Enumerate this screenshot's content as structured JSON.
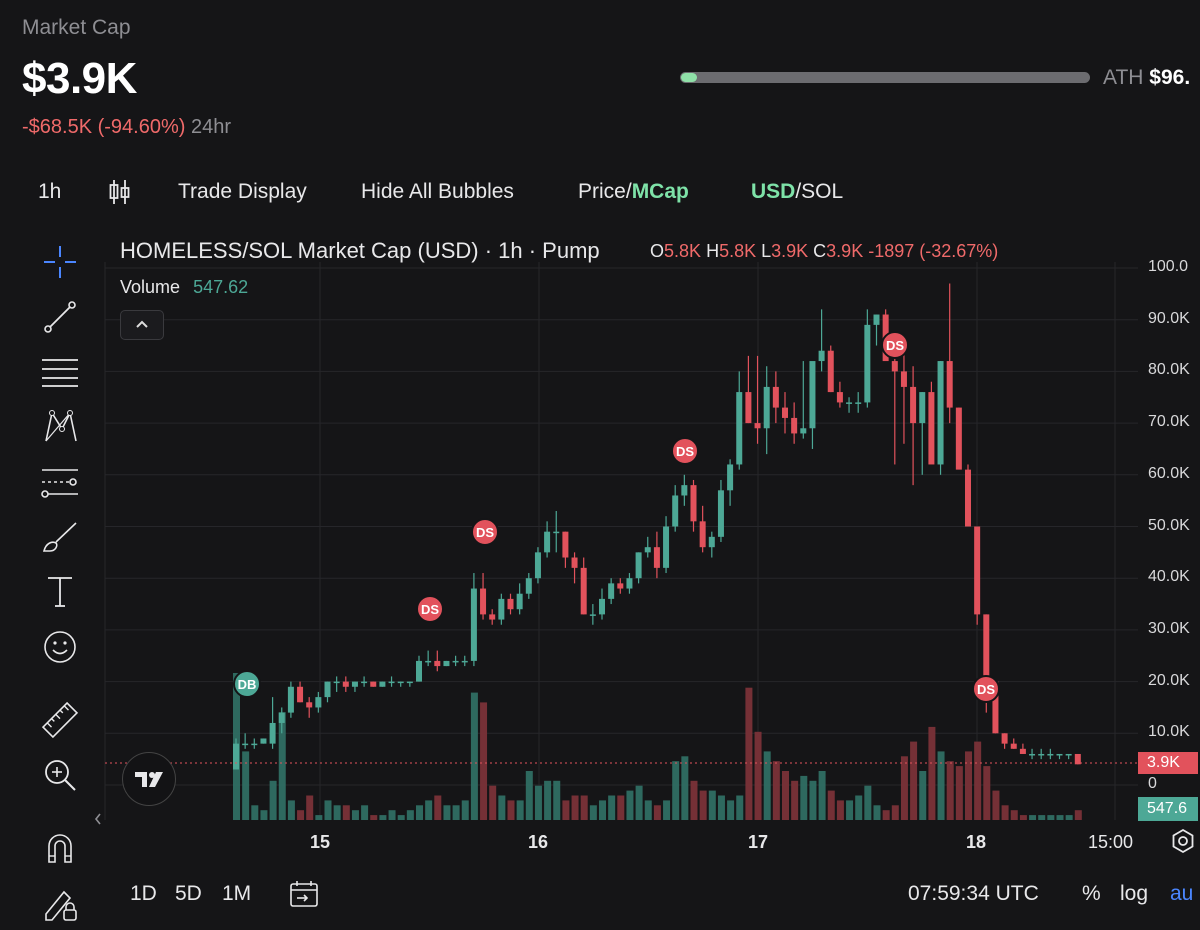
{
  "header": {
    "market_cap_label": "Market Cap",
    "market_cap_value": "$3.9K",
    "change_value": "-$68.5K (-94.60%)",
    "change_period": "24hr",
    "ath_label": "ATH",
    "ath_value": "$96.",
    "ath_progress_fraction": 0.04
  },
  "toolbar": {
    "interval": "1h",
    "trade_display": "Trade Display",
    "hide_bubbles": "Hide All Bubbles",
    "price_label": "Price/",
    "mcap_label": "MCap",
    "usd_label": "USD",
    "sol_label": "/SOL"
  },
  "legend": {
    "title": "HOMELESS/SOL Market Cap (USD) · 1h · Pump",
    "o_label": "O",
    "o_value": "5.8K",
    "h_label": "H",
    "h_value": "5.8K",
    "l_label": "L",
    "l_value": "3.9K",
    "c_label": "C",
    "c_value": "3.9K",
    "change": "-1897 (-32.67%)",
    "volume_label": "Volume",
    "volume_value": "547.62",
    "collapse_icon": "chevron-up-icon"
  },
  "axis": {
    "y_ticks": [
      "100.0",
      "90.0K",
      "80.0K",
      "70.0K",
      "60.0K",
      "50.0K",
      "40.0K",
      "30.0K",
      "20.0K",
      "10.0K",
      "0"
    ],
    "x_ticks": [
      "15",
      "16",
      "17",
      "18",
      "15:00"
    ],
    "price_tag": "3.9K",
    "volume_tag": "547.6"
  },
  "bubbles": [
    "DB",
    "DS",
    "DS",
    "DS",
    "DS",
    "DS"
  ],
  "bottom": {
    "range_1d": "1D",
    "range_5d": "5D",
    "range_1m": "1M",
    "time": "07:59:34 UTC",
    "percent": "%",
    "log": "log",
    "auto": "au"
  },
  "colors": {
    "up": "#4da896",
    "down": "#e2525c",
    "accent_green": "#7ee2a8",
    "background": "#151517"
  },
  "chart_data": {
    "type": "candlestick",
    "series": [
      {
        "name": "Market Cap",
        "ohlc_in_k": [
          [
            3,
            9,
            5,
            8
          ],
          [
            8,
            10,
            7,
            8
          ],
          [
            8,
            9,
            7,
            8
          ],
          [
            8,
            9,
            8,
            9
          ],
          [
            8,
            17,
            7,
            12
          ],
          [
            12,
            15,
            10,
            14
          ],
          [
            14,
            20,
            13,
            19
          ],
          [
            19,
            20,
            16,
            16
          ],
          [
            16,
            17,
            13,
            15
          ],
          [
            15,
            18,
            14,
            17
          ],
          [
            17,
            20,
            16,
            20
          ],
          [
            20,
            21,
            18,
            20
          ],
          [
            20,
            21,
            18,
            19
          ],
          [
            19,
            20,
            18,
            20
          ],
          [
            20,
            21,
            19,
            20
          ],
          [
            20,
            20,
            19,
            19
          ],
          [
            19,
            20,
            19,
            20
          ],
          [
            20,
            21,
            19,
            20
          ],
          [
            20,
            20,
            19,
            20
          ],
          [
            20,
            20,
            19,
            20
          ],
          [
            20,
            25,
            20,
            24
          ],
          [
            24,
            26,
            23,
            24
          ],
          [
            24,
            26,
            22,
            23
          ],
          [
            23,
            24,
            23,
            24
          ],
          [
            24,
            25,
            23,
            24
          ],
          [
            24,
            25,
            23,
            24
          ],
          [
            24,
            41,
            23,
            38
          ],
          [
            38,
            41,
            32,
            33
          ],
          [
            33,
            34,
            31,
            32
          ],
          [
            32,
            37,
            31,
            36
          ],
          [
            36,
            37,
            33,
            34
          ],
          [
            34,
            39,
            33,
            37
          ],
          [
            37,
            41,
            36,
            40
          ],
          [
            40,
            46,
            39,
            45
          ],
          [
            45,
            51,
            44,
            49
          ],
          [
            49,
            53,
            45,
            49
          ],
          [
            49,
            49,
            42,
            44
          ],
          [
            44,
            45,
            39,
            42
          ],
          [
            42,
            44,
            33,
            33
          ],
          [
            33,
            35,
            31,
            33
          ],
          [
            33,
            38,
            32,
            36
          ],
          [
            36,
            40,
            35,
            39
          ],
          [
            39,
            40,
            37,
            38
          ],
          [
            38,
            41,
            37,
            40
          ],
          [
            40,
            45,
            39,
            45
          ],
          [
            45,
            48,
            44,
            46
          ],
          [
            46,
            49,
            40,
            42
          ],
          [
            42,
            52,
            41,
            50
          ],
          [
            50,
            58,
            49,
            56
          ],
          [
            56,
            60,
            54,
            58
          ],
          [
            58,
            59,
            49,
            51
          ],
          [
            51,
            54,
            45,
            46
          ],
          [
            46,
            49,
            44,
            48
          ],
          [
            48,
            59,
            47,
            57
          ],
          [
            57,
            63,
            54,
            62
          ],
          [
            62,
            80,
            61,
            76
          ],
          [
            76,
            83,
            70,
            70
          ],
          [
            70,
            83,
            66,
            69
          ],
          [
            69,
            81,
            64,
            77
          ],
          [
            77,
            80,
            70,
            73
          ],
          [
            73,
            76,
            68,
            71
          ],
          [
            71,
            74,
            66,
            68
          ],
          [
            68,
            82,
            67,
            69
          ],
          [
            69,
            79,
            65,
            82
          ],
          [
            82,
            92,
            80,
            84
          ],
          [
            84,
            85,
            76,
            76
          ],
          [
            76,
            78,
            73,
            74
          ],
          [
            74,
            75,
            72,
            74
          ],
          [
            74,
            76,
            72,
            74
          ],
          [
            74,
            92,
            73,
            89
          ],
          [
            89,
            91,
            85,
            91
          ],
          [
            91,
            92,
            84,
            82
          ],
          [
            82,
            86,
            62,
            80
          ],
          [
            80,
            84,
            66,
            77
          ],
          [
            77,
            81,
            58,
            70
          ],
          [
            70,
            76,
            60,
            76
          ],
          [
            76,
            78,
            65,
            62
          ],
          [
            62,
            82,
            60,
            82
          ],
          [
            82,
            97,
            70,
            73
          ],
          [
            73,
            73,
            64,
            61
          ],
          [
            61,
            62,
            52,
            50
          ],
          [
            50,
            50,
            31,
            33
          ],
          [
            33,
            33,
            14,
            20
          ],
          [
            20,
            20,
            10,
            10
          ],
          [
            10,
            10,
            7,
            8
          ],
          [
            8,
            9,
            7,
            7
          ],
          [
            7,
            8,
            6,
            6
          ],
          [
            6,
            7,
            5,
            6
          ],
          [
            6,
            7,
            5,
            6
          ],
          [
            6,
            7,
            5,
            6
          ],
          [
            6,
            6,
            5,
            6
          ],
          [
            6,
            6,
            5,
            6
          ],
          [
            6,
            6,
            4,
            4
          ]
        ]
      },
      {
        "name": "Volume",
        "values": [
          30,
          14,
          3,
          2,
          8,
          22,
          4,
          2,
          5,
          1,
          4,
          3,
          3,
          2,
          3,
          1,
          1,
          2,
          1,
          2,
          3,
          4,
          5,
          3,
          3,
          4,
          26,
          24,
          7,
          5,
          4,
          4,
          10,
          7,
          8,
          8,
          4,
          5,
          5,
          3,
          4,
          5,
          5,
          6,
          7,
          4,
          3,
          4,
          12,
          13,
          8,
          6,
          6,
          5,
          4,
          5,
          27,
          18,
          14,
          12,
          10,
          8,
          9,
          8,
          10,
          6,
          4,
          4,
          5,
          7,
          3,
          2,
          3,
          13,
          16,
          10,
          19,
          14,
          12,
          11,
          14,
          16,
          11,
          6,
          3,
          2,
          1,
          1,
          1,
          1,
          1,
          1,
          2
        ]
      }
    ],
    "x_ticks": [
      "15",
      "16",
      "17",
      "18",
      "15:00"
    ],
    "y_ticks": [
      "100.0",
      "90.0K",
      "80.0K",
      "70.0K",
      "60.0K",
      "50.0K",
      "40.0K",
      "30.0K",
      "20.0K",
      "10.0K",
      "0"
    ],
    "ylim": [
      0,
      100
    ],
    "grid": true,
    "last_price": "3.9K",
    "last_volume": "547.6"
  }
}
